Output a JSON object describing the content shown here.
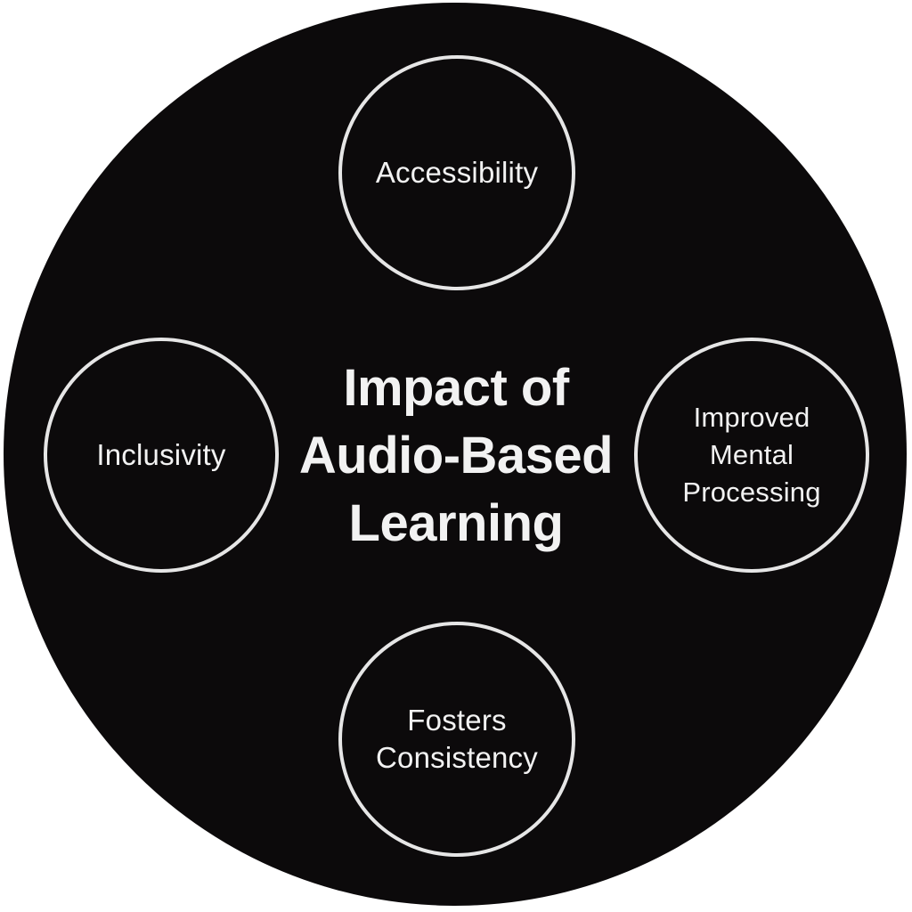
{
  "diagram": {
    "title": "Impact of\nAudio-Based\nLearning",
    "nodes": {
      "top": "Accessibility",
      "left": "Inclusivity",
      "right": "Improved\nMental\nProcessing",
      "bottom": "Fosters\nConsistency"
    },
    "colors": {
      "background": "#ffffff",
      "outer_circle": "#0c0a0b",
      "stroke": "#e6e6e6",
      "text": "#f2f2f2"
    }
  }
}
